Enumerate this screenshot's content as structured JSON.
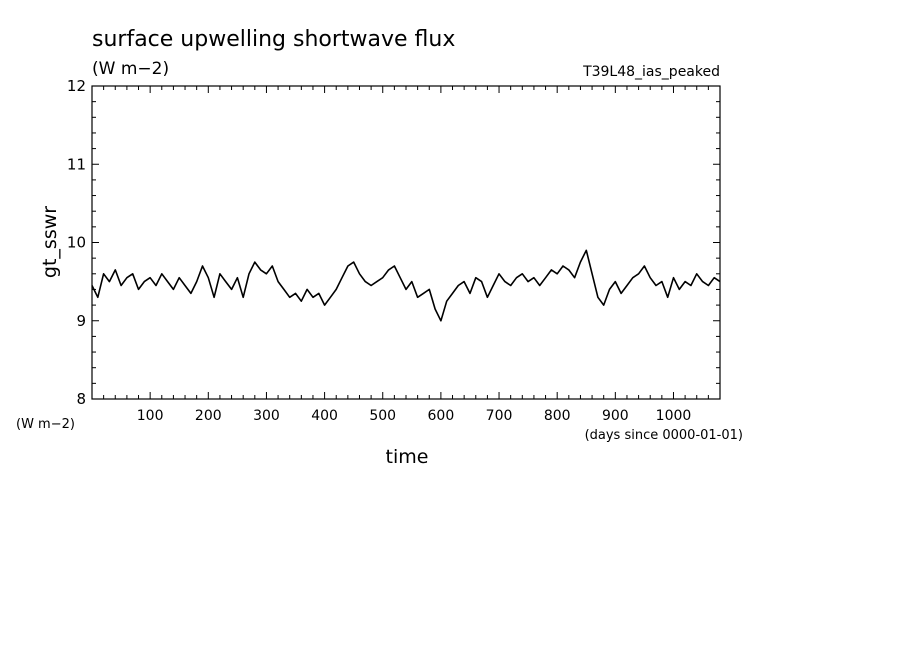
{
  "chart_data": {
    "type": "line",
    "title": "surface upwelling shortwave flux",
    "units": "(W m−2)",
    "experiment": "T39L48_ias_peaked",
    "ylabel": "gt_sswr",
    "yunits": "(W m−2)",
    "xlabel": "time",
    "xunits": "(days since 0000-01-01)",
    "xlim": [
      0,
      1080
    ],
    "ylim": [
      8,
      12
    ],
    "xticks": [
      100,
      200,
      300,
      400,
      500,
      600,
      700,
      800,
      900,
      1000
    ],
    "yticks": [
      8,
      9,
      10,
      11,
      12
    ],
    "grid": false,
    "series": [
      {
        "x": [
          0,
          10,
          20,
          30,
          40,
          50,
          60,
          70,
          80,
          90,
          100,
          110,
          120,
          130,
          140,
          150,
          160,
          170,
          180,
          190,
          200,
          210,
          220,
          230,
          240,
          250,
          260,
          270,
          280,
          290,
          300,
          310,
          320,
          330,
          340,
          350,
          360,
          370,
          380,
          390,
          400,
          410,
          420,
          430,
          440,
          450,
          460,
          470,
          480,
          490,
          500,
          510,
          520,
          530,
          540,
          550,
          560,
          570,
          580,
          590,
          600,
          610,
          620,
          630,
          640,
          650,
          660,
          670,
          680,
          690,
          700,
          710,
          720,
          730,
          740,
          750,
          760,
          770,
          780,
          790,
          800,
          810,
          820,
          830,
          840,
          850,
          860,
          870,
          880,
          890,
          900,
          910,
          920,
          930,
          940,
          950,
          960,
          970,
          980,
          990,
          1000,
          1010,
          1020,
          1030,
          1040,
          1050,
          1060,
          1070,
          1080
        ],
        "values": [
          9.45,
          9.3,
          9.6,
          9.5,
          9.65,
          9.45,
          9.55,
          9.6,
          9.4,
          9.5,
          9.55,
          9.45,
          9.6,
          9.5,
          9.4,
          9.55,
          9.45,
          9.35,
          9.5,
          9.7,
          9.55,
          9.3,
          9.6,
          9.5,
          9.4,
          9.55,
          9.3,
          9.6,
          9.75,
          9.65,
          9.6,
          9.7,
          9.5,
          9.4,
          9.3,
          9.35,
          9.25,
          9.4,
          9.3,
          9.35,
          9.2,
          9.3,
          9.4,
          9.55,
          9.7,
          9.75,
          9.6,
          9.5,
          9.45,
          9.5,
          9.55,
          9.65,
          9.7,
          9.55,
          9.4,
          9.5,
          9.3,
          9.35,
          9.4,
          9.15,
          9.0,
          9.25,
          9.35,
          9.45,
          9.5,
          9.35,
          9.55,
          9.5,
          9.3,
          9.45,
          9.6,
          9.5,
          9.45,
          9.55,
          9.6,
          9.5,
          9.55,
          9.45,
          9.55,
          9.65,
          9.6,
          9.7,
          9.65,
          9.55,
          9.75,
          9.9,
          9.6,
          9.3,
          9.2,
          9.4,
          9.5,
          9.35,
          9.45,
          9.55,
          9.6,
          9.7,
          9.55,
          9.45,
          9.5,
          9.3,
          9.55,
          9.4,
          9.5,
          9.45,
          9.6,
          9.5,
          9.45,
          9.55,
          9.5
        ]
      }
    ]
  }
}
